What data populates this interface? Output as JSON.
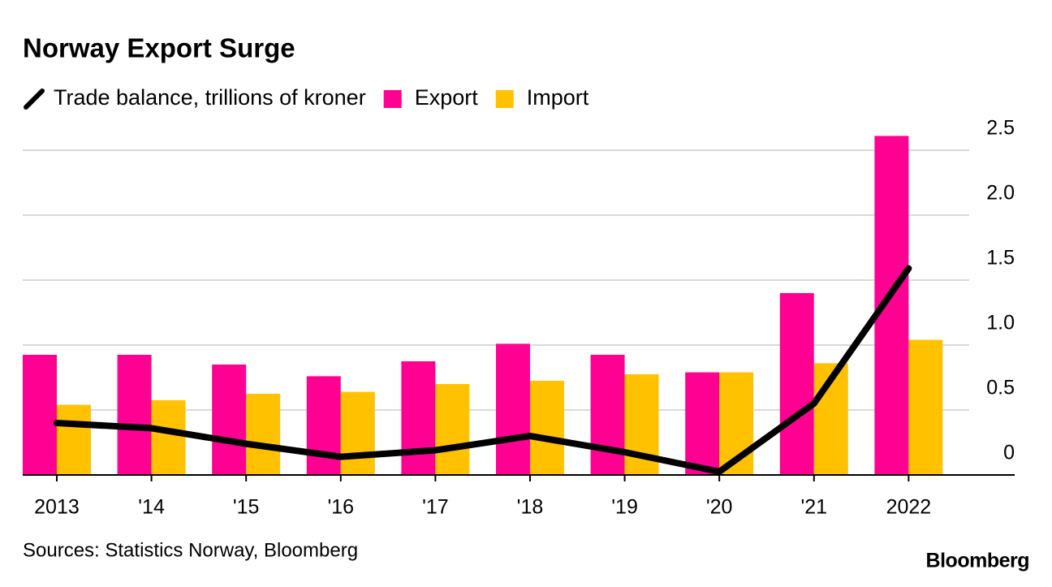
{
  "chart_data": {
    "type": "bar",
    "title": "Norway Export Surge",
    "source": "Sources: Statistics Norway, Bloomberg",
    "brand": "Bloomberg",
    "categories": [
      "2013",
      "'14",
      "'15",
      "'16",
      "'17",
      "'18",
      "'19",
      "'20",
      "'21",
      "2022"
    ],
    "series": [
      {
        "name": "Trade balance, trillions of kroner",
        "type": "line",
        "color": "#000000",
        "values": [
          0.4,
          0.36,
          0.24,
          0.14,
          0.19,
          0.3,
          0.175,
          0.025,
          0.55,
          1.59
        ]
      },
      {
        "name": "Export",
        "type": "bar",
        "color": "#ff0093",
        "values": [
          0.925,
          0.925,
          0.85,
          0.76,
          0.875,
          1.01,
          0.925,
          0.79,
          1.4,
          2.61
        ]
      },
      {
        "name": "Import",
        "type": "bar",
        "color": "#ffc100",
        "values": [
          0.54,
          0.575,
          0.625,
          0.64,
          0.7,
          0.725,
          0.775,
          0.79,
          0.86,
          1.04
        ]
      }
    ],
    "ylim": [
      0,
      2.5
    ],
    "yticks": [
      0,
      0.5,
      {
        "value": 1,
        "label": "1.0"
      },
      1.5,
      {
        "value": 2,
        "label": "2.0"
      },
      2.5
    ],
    "grid": true
  }
}
